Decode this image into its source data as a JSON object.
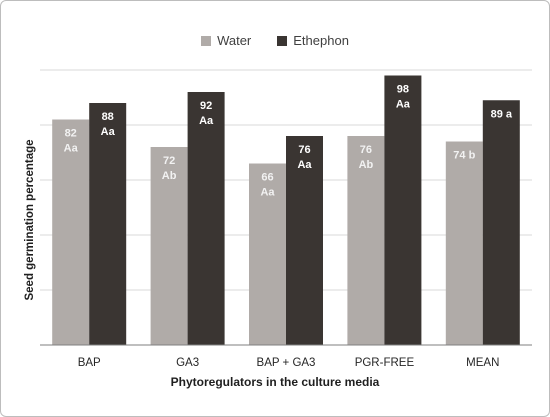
{
  "chart_data": {
    "type": "bar",
    "title": "",
    "xlabel": "Phytoregulators in the culture media",
    "ylabel": "Seed germination percentage",
    "categories": [
      "BAP",
      "GA3",
      "BAP + GA3",
      "PGR-FREE",
      "MEAN"
    ],
    "ylim": [
      0,
      100
    ],
    "grid": true,
    "legend_position": "top-center",
    "series": [
      {
        "name": "Water",
        "color": "#b0aba8",
        "values": [
          82,
          72,
          66,
          76,
          74
        ],
        "labels": [
          [
            "82",
            "Aa"
          ],
          [
            "72",
            "Ab"
          ],
          [
            "66",
            "Aa"
          ],
          [
            "76",
            "Ab"
          ],
          [
            "74 b"
          ]
        ]
      },
      {
        "name": "Ethephon",
        "color": "#3a3532",
        "values": [
          88,
          92,
          76,
          98,
          89
        ],
        "labels": [
          [
            "88",
            "Aa"
          ],
          [
            "92",
            "Aa"
          ],
          [
            "76",
            "Aa"
          ],
          [
            "98",
            "Aa"
          ],
          [
            "89 a"
          ]
        ]
      }
    ]
  }
}
